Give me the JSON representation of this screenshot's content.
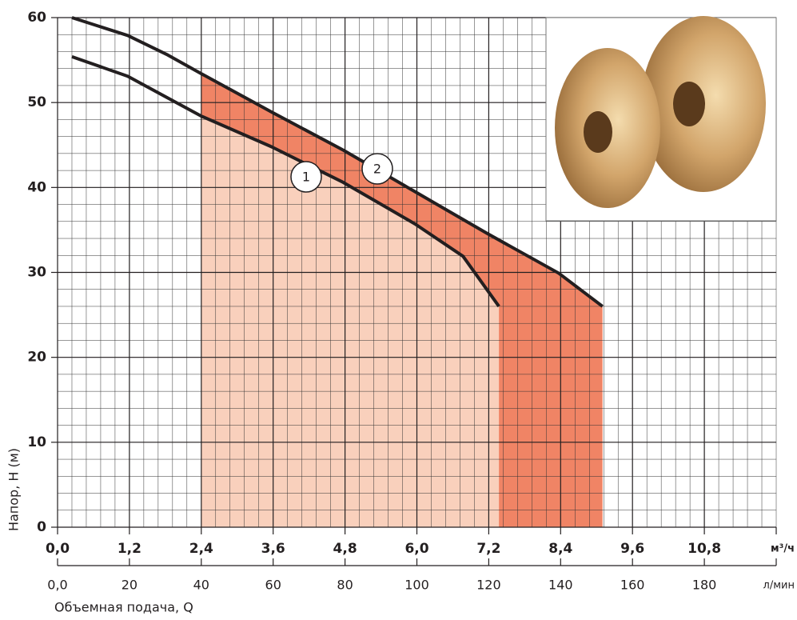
{
  "chart_data": {
    "type": "line",
    "xlim": [
      0,
      12
    ],
    "ylim": [
      0,
      60
    ],
    "x2lim": [
      0,
      200
    ],
    "xticks": [
      {
        "value": 0,
        "label": "0,0"
      },
      {
        "value": 1.2,
        "label": "1,2"
      },
      {
        "value": 2.4,
        "label": "2,4"
      },
      {
        "value": 3.6,
        "label": "3,6"
      },
      {
        "value": 4.8,
        "label": "4,8"
      },
      {
        "value": 6.0,
        "label": "6,0"
      },
      {
        "value": 7.2,
        "label": "7,2"
      },
      {
        "value": 8.4,
        "label": "8,4"
      },
      {
        "value": 9.6,
        "label": "9,6"
      },
      {
        "value": 10.8,
        "label": "10,8"
      }
    ],
    "x2ticks": [
      {
        "value": 0,
        "label": "0,0"
      },
      20,
      40,
      60,
      80,
      100,
      120,
      140,
      160,
      180
    ],
    "yticks": [
      0,
      10,
      20,
      30,
      40,
      50,
      60
    ],
    "x_unit": "м³/ч",
    "x2_unit": "л/мин",
    "xlabel": "Объемная подача, Q",
    "ylabel": "Напор, Н (м)",
    "grid": true,
    "series": [
      {
        "name": "1",
        "color": "#231f20",
        "fill": "#f9d0bc",
        "x": [
          0.24,
          1.17,
          2.4,
          3.57,
          4.77,
          5.97,
          6.77,
          7.37
        ],
        "values": [
          55.4,
          53.1,
          48.4,
          44.8,
          40.6,
          35.7,
          31.9,
          26.0
        ]
      },
      {
        "name": "2",
        "color": "#231f20",
        "fill": "#f08465",
        "x": [
          0.24,
          1.17,
          1.84,
          2.4,
          3.57,
          4.77,
          5.97,
          7.17,
          8.37,
          9.1
        ],
        "values": [
          60.0,
          57.9,
          55.6,
          53.4,
          48.9,
          44.4,
          39.5,
          34.6,
          29.9,
          26.0
        ]
      }
    ]
  }
}
